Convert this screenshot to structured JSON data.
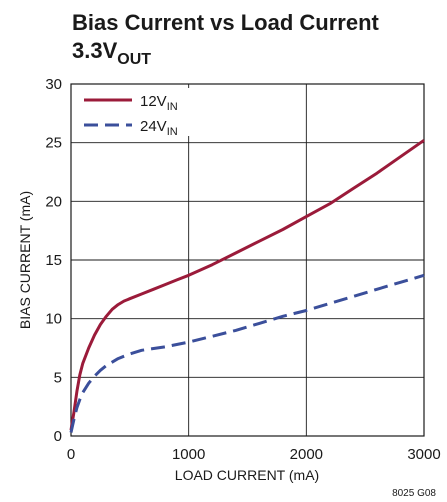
{
  "chart_data": {
    "type": "line",
    "title": "Bias Current vs Load Current",
    "subtitle": {
      "main": "3.3V",
      "sub": "OUT"
    },
    "xlabel": "LOAD CURRENT (mA)",
    "ylabel": "BIAS CURRENT (mA)",
    "xlim": [
      0,
      3000
    ],
    "ylim": [
      0,
      30
    ],
    "xticks": [
      0,
      1000,
      2000,
      3000
    ],
    "yticks": [
      0,
      5,
      10,
      15,
      20,
      25,
      30
    ],
    "grid": true,
    "legend_position": "top-left",
    "figure_code": "8025 G08",
    "series": [
      {
        "name": "12VIN",
        "label_main": "12V",
        "label_sub": "IN",
        "color": "#9b1b3a",
        "style": "solid",
        "x": [
          0,
          25,
          50,
          75,
          100,
          150,
          200,
          250,
          300,
          350,
          400,
          450,
          500,
          600,
          700,
          800,
          900,
          1000,
          1200,
          1400,
          1600,
          1800,
          2000,
          2200,
          2400,
          2600,
          2800,
          3000
        ],
        "y": [
          0.5,
          2.0,
          3.8,
          5.2,
          6.2,
          7.5,
          8.6,
          9.5,
          10.2,
          10.8,
          11.2,
          11.5,
          11.7,
          12.1,
          12.5,
          12.9,
          13.3,
          13.7,
          14.6,
          15.6,
          16.6,
          17.6,
          18.7,
          19.8,
          21.1,
          22.4,
          23.8,
          25.2
        ]
      },
      {
        "name": "24VIN",
        "label_main": "24V",
        "label_sub": "IN",
        "color": "#3b4f9b",
        "style": "dashed",
        "x": [
          0,
          25,
          50,
          75,
          100,
          150,
          200,
          250,
          300,
          400,
          500,
          600,
          800,
          1000,
          1200,
          1400,
          1600,
          1800,
          2000,
          2200,
          2400,
          2600,
          2800,
          3000
        ],
        "y": [
          0.3,
          1.4,
          2.4,
          3.1,
          3.7,
          4.5,
          5.1,
          5.6,
          6.0,
          6.6,
          7.0,
          7.3,
          7.6,
          8.0,
          8.5,
          9.0,
          9.6,
          10.2,
          10.7,
          11.3,
          11.9,
          12.5,
          13.1,
          13.7
        ]
      }
    ]
  }
}
